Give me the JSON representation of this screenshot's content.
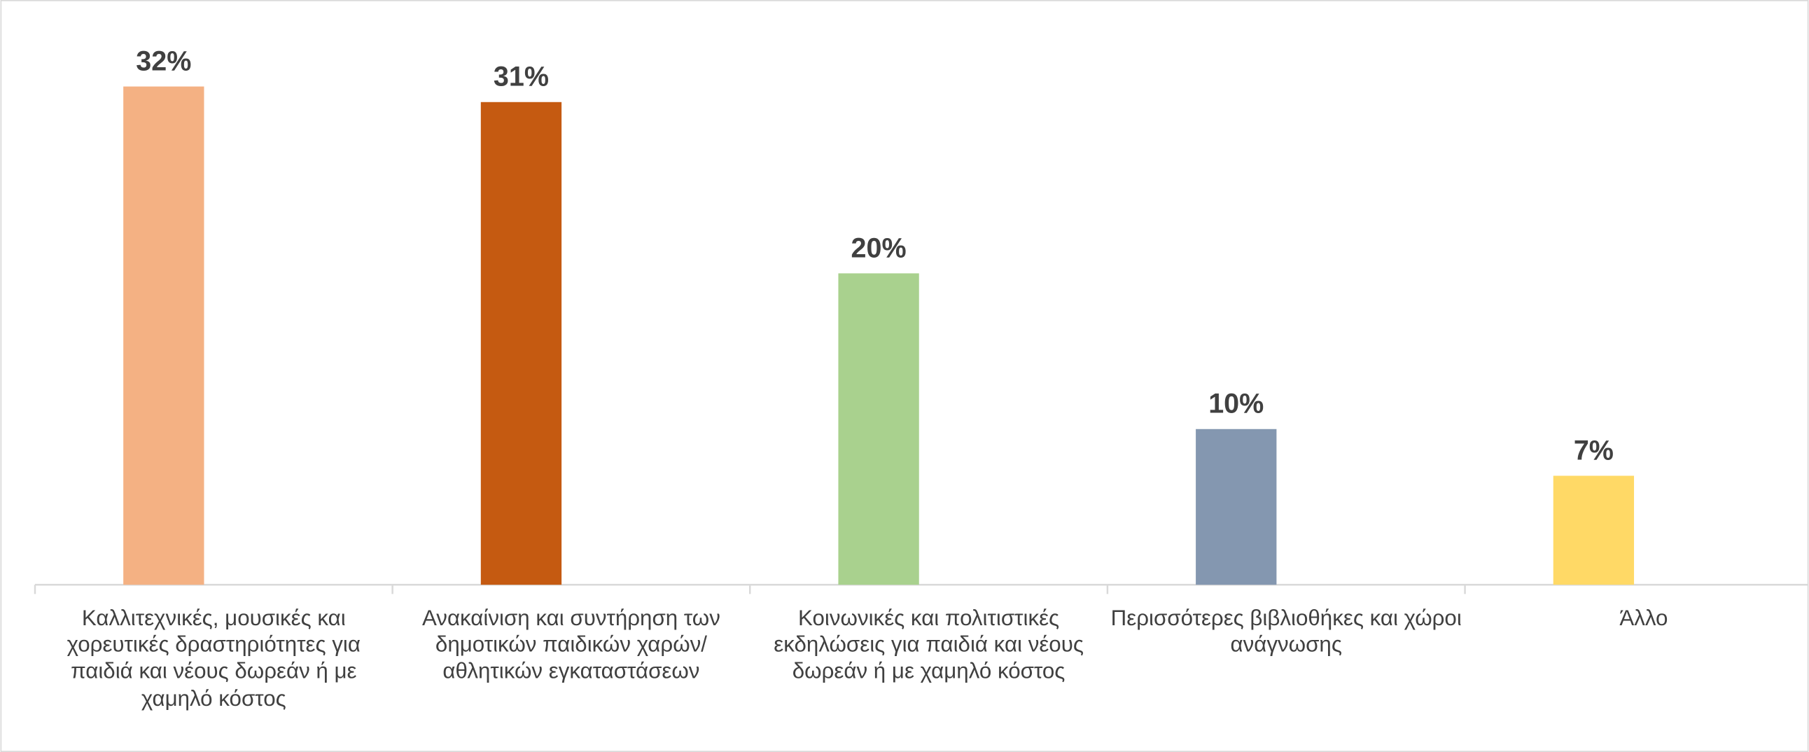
{
  "chart_data": {
    "type": "bar",
    "categories": [
      "Καλλιτεχνικές, μουσικές και χορευτικές δραστηριότητες για παιδιά και νέους δωρεάν ή με χαμηλό κόστος",
      "Ανακαίνιση και συντήρηση των δημοτικών παιδικών χαρών/αθλητικών εγκαταστάσεων",
      "Κοινωνικές και πολιτιστικές εκδηλώσεις για παιδιά και νέους δωρεάν ή με χαμηλό κόστος",
      "Περισσότερες βιβλιοθήκες και χώροι ανάγνωσης",
      "Άλλο"
    ],
    "values": [
      32,
      31,
      20,
      10,
      7
    ],
    "value_labels": [
      "32%",
      "31%",
      "20%",
      "10%",
      "7%"
    ],
    "colors": [
      "#f4b183",
      "#c55a11",
      "#a9d18e",
      "#8497b0",
      "#ffd966"
    ]
  }
}
